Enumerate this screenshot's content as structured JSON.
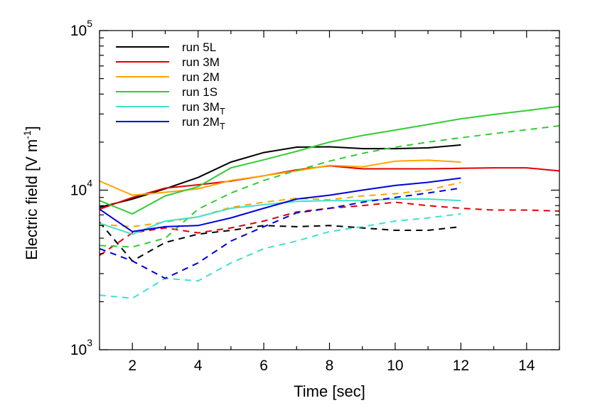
{
  "chart_data": {
    "type": "line",
    "xlabel": "Time [sec]",
    "ylabel": {
      "prefix": "Electric field [V m",
      "sup": "-1",
      "suffix": "]"
    },
    "xlim": [
      1,
      15
    ],
    "ylim": [
      1000,
      100000
    ],
    "yscale": "log",
    "x_ticks": [
      2,
      4,
      6,
      8,
      10,
      12,
      14
    ],
    "y_ticks": [
      {
        "value": 1000,
        "base": "10",
        "exp": "3"
      },
      {
        "value": 10000,
        "base": "10",
        "exp": "4"
      },
      {
        "value": 100000,
        "base": "10",
        "exp": "5"
      }
    ],
    "legend_position": "top-left",
    "series": [
      {
        "name": "run 5L",
        "sub": "",
        "color": "#000000",
        "solid": [
          [
            1,
            7800
          ],
          [
            2,
            8800
          ],
          [
            3,
            10200
          ],
          [
            4,
            12000
          ],
          [
            5,
            15000
          ],
          [
            6,
            17200
          ],
          [
            7,
            18600
          ],
          [
            8,
            18700
          ],
          [
            9,
            18200
          ],
          [
            10,
            18200
          ],
          [
            11,
            18400
          ],
          [
            12,
            19200
          ]
        ],
        "dashed": [
          [
            1,
            6300
          ],
          [
            2,
            3600
          ],
          [
            3,
            4700
          ],
          [
            4,
            5300
          ],
          [
            5,
            5600
          ],
          [
            6,
            6000
          ],
          [
            7,
            5900
          ],
          [
            8,
            6000
          ],
          [
            9,
            5800
          ],
          [
            10,
            5600
          ],
          [
            11,
            5600
          ],
          [
            12,
            5900
          ]
        ]
      },
      {
        "name": "run 3M",
        "sub": "",
        "color": "#e00000",
        "solid": [
          [
            1,
            7600
          ],
          [
            2,
            9000
          ],
          [
            3,
            10300
          ],
          [
            4,
            10800
          ],
          [
            5,
            11400
          ],
          [
            6,
            12300
          ],
          [
            7,
            13400
          ],
          [
            8,
            14200
          ],
          [
            9,
            13600
          ],
          [
            10,
            13600
          ],
          [
            11,
            13600
          ],
          [
            12,
            13700
          ],
          [
            13,
            13800
          ],
          [
            14,
            13800
          ],
          [
            15,
            13200
          ]
        ],
        "dashed": [
          [
            1,
            3900
          ],
          [
            2,
            5400
          ],
          [
            3,
            5800
          ],
          [
            4,
            5400
          ],
          [
            5,
            5800
          ],
          [
            6,
            6400
          ],
          [
            7,
            7300
          ],
          [
            8,
            7700
          ],
          [
            9,
            8000
          ],
          [
            10,
            8400
          ],
          [
            11,
            8000
          ],
          [
            12,
            7700
          ],
          [
            13,
            7500
          ],
          [
            14,
            7500
          ],
          [
            15,
            7400
          ]
        ]
      },
      {
        "name": "run 2M",
        "sub": "",
        "color": "#ffa500",
        "solid": [
          [
            1,
            11400
          ],
          [
            2,
            9300
          ],
          [
            3,
            9700
          ],
          [
            4,
            10200
          ],
          [
            5,
            11500
          ],
          [
            6,
            12300
          ],
          [
            7,
            13200
          ],
          [
            8,
            14300
          ],
          [
            9,
            14000
          ],
          [
            10,
            15200
          ],
          [
            11,
            15400
          ],
          [
            12,
            15000
          ]
        ],
        "dashed": [
          [
            1,
            6100
          ],
          [
            2,
            5900
          ],
          [
            3,
            6300
          ],
          [
            4,
            6800
          ],
          [
            5,
            7800
          ],
          [
            6,
            8400
          ],
          [
            7,
            8900
          ],
          [
            8,
            8700
          ],
          [
            9,
            9200
          ],
          [
            10,
            9500
          ],
          [
            11,
            10000
          ],
          [
            12,
            11200
          ]
        ]
      },
      {
        "name": "run 1S",
        "sub": "",
        "color": "#33cc33",
        "solid": [
          [
            1,
            8600
          ],
          [
            2,
            7100
          ],
          [
            3,
            9200
          ],
          [
            4,
            10500
          ],
          [
            5,
            13800
          ],
          [
            6,
            15500
          ],
          [
            7,
            17500
          ],
          [
            8,
            20000
          ],
          [
            9,
            22000
          ],
          [
            10,
            23800
          ],
          [
            11,
            25800
          ],
          [
            12,
            28000
          ],
          [
            13,
            29800
          ],
          [
            14,
            31500
          ],
          [
            15,
            33500
          ]
        ],
        "dashed": [
          [
            1,
            4500
          ],
          [
            2,
            4400
          ],
          [
            3,
            5000
          ],
          [
            4,
            7600
          ],
          [
            5,
            9600
          ],
          [
            6,
            11500
          ],
          [
            7,
            13300
          ],
          [
            8,
            15200
          ],
          [
            9,
            17000
          ],
          [
            10,
            18600
          ],
          [
            11,
            20000
          ],
          [
            12,
            21300
          ],
          [
            13,
            22600
          ],
          [
            14,
            23900
          ],
          [
            15,
            25300
          ]
        ]
      },
      {
        "name": "run 3M",
        "sub": "T",
        "color": "#40e0d0",
        "solid": [
          [
            1,
            6200
          ],
          [
            2,
            5300
          ],
          [
            3,
            6400
          ],
          [
            4,
            6800
          ],
          [
            5,
            7700
          ],
          [
            6,
            8100
          ],
          [
            7,
            8500
          ],
          [
            8,
            8600
          ],
          [
            9,
            8600
          ],
          [
            10,
            8800
          ],
          [
            11,
            8800
          ],
          [
            12,
            8600
          ]
        ],
        "dashed": [
          [
            1,
            2200
          ],
          [
            2,
            2100
          ],
          [
            3,
            2800
          ],
          [
            4,
            2700
          ],
          [
            5,
            3500
          ],
          [
            6,
            4300
          ],
          [
            7,
            4800
          ],
          [
            8,
            5500
          ],
          [
            9,
            5900
          ],
          [
            10,
            6400
          ],
          [
            11,
            6700
          ],
          [
            12,
            7100
          ]
        ]
      },
      {
        "name": "run 2M",
        "sub": "T",
        "color": "#0000dd",
        "solid": [
          [
            1,
            7600
          ],
          [
            2,
            5500
          ],
          [
            3,
            5900
          ],
          [
            4,
            6000
          ],
          [
            5,
            6700
          ],
          [
            6,
            7700
          ],
          [
            7,
            8800
          ],
          [
            8,
            9300
          ],
          [
            9,
            10000
          ],
          [
            10,
            10700
          ],
          [
            11,
            11200
          ],
          [
            12,
            11900
          ]
        ],
        "dashed": [
          [
            1,
            4300
          ],
          [
            2,
            3600
          ],
          [
            3,
            2800
          ],
          [
            4,
            3500
          ],
          [
            5,
            4800
          ],
          [
            6,
            5900
          ],
          [
            7,
            7200
          ],
          [
            8,
            7700
          ],
          [
            9,
            8400
          ],
          [
            10,
            9000
          ],
          [
            11,
            9600
          ],
          [
            12,
            10300
          ]
        ]
      }
    ]
  }
}
